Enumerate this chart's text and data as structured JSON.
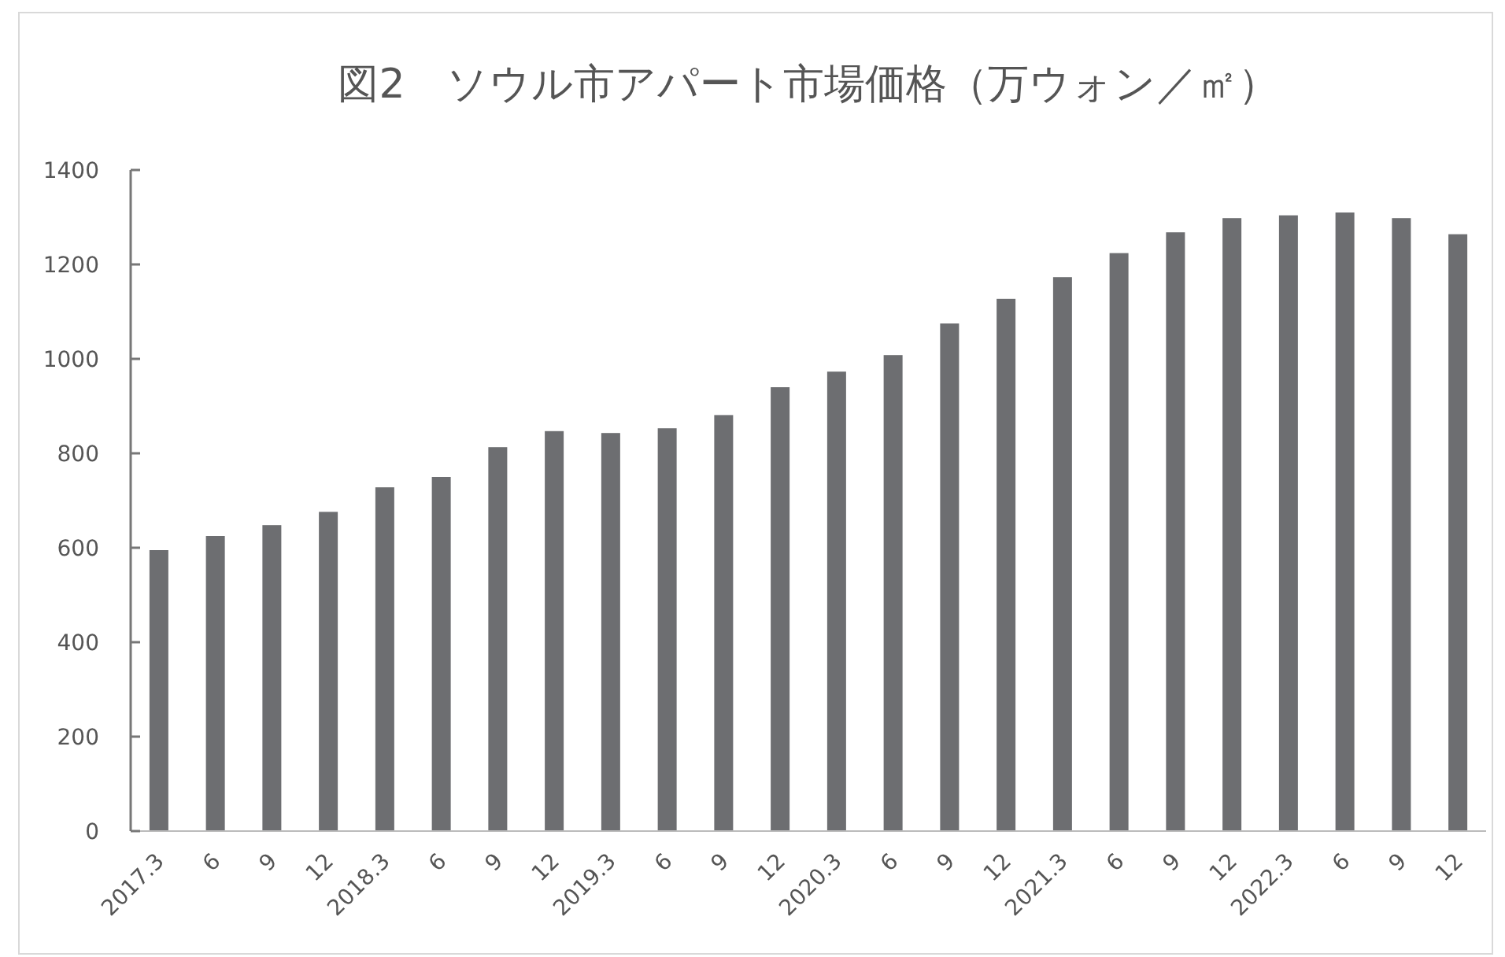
{
  "chart_data": {
    "type": "bar",
    "title": "図2　ソウル市アパート市場価格（万ウォン／㎡）",
    "categories": [
      "2017.3",
      "6",
      "9",
      "12",
      "2018.3",
      "6",
      "9",
      "12",
      "2019.3",
      "6",
      "9",
      "12",
      "2020.3",
      "6",
      "9",
      "12",
      "2021.3",
      "6",
      "9",
      "12",
      "2022.3",
      "6",
      "9",
      "12"
    ],
    "values": [
      595,
      625,
      648,
      676,
      728,
      750,
      813,
      847,
      843,
      853,
      881,
      940,
      973,
      1008,
      1075,
      1127,
      1173,
      1224,
      1268,
      1298,
      1304,
      1310,
      1298,
      1264
    ],
    "color": "#6d6e71",
    "ylim": [
      0,
      1400
    ],
    "yticks": [
      0,
      200,
      400,
      600,
      800,
      1000,
      1200,
      1400
    ],
    "grid": false
  }
}
